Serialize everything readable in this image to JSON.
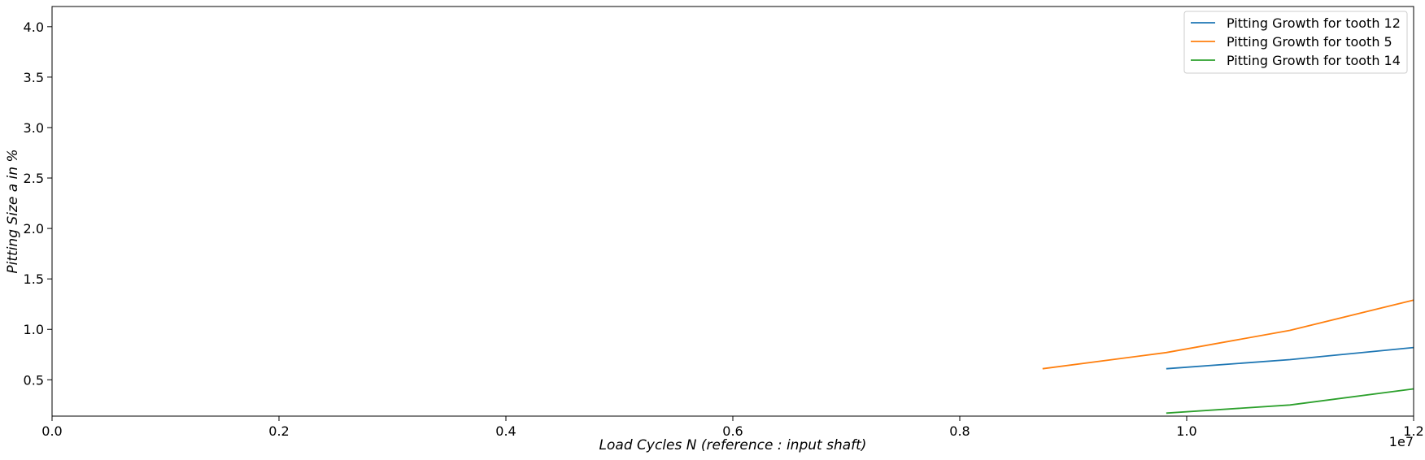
{
  "chart_data": {
    "type": "line",
    "xlabel": "Load Cycles N (reference :  input shaft)",
    "ylabel": "Pitting Size a in %",
    "x_offset_label": "1e7",
    "xlim": [
      0.0,
      1.2
    ],
    "ylim": [
      0.14,
      4.2
    ],
    "x_ticks": [
      "0.0",
      "0.2",
      "0.4",
      "0.6",
      "0.8",
      "1.0",
      "1.2"
    ],
    "y_ticks": [
      "0.5",
      "1.0",
      "1.5",
      "2.0",
      "2.5",
      "3.0",
      "3.5",
      "4.0"
    ],
    "legend_position": "top-right",
    "grid": false,
    "series": [
      {
        "name": "Pitting Growth for tooth 12",
        "color": "#1f77b4",
        "x": [
          0.982,
          1.091,
          1.2
        ],
        "y": [
          0.61,
          0.7,
          0.82
        ]
      },
      {
        "name": "Pitting Growth for tooth 5",
        "color": "#ff7f0e",
        "x": [
          0.873,
          0.982,
          1.091,
          1.2
        ],
        "y": [
          0.61,
          0.77,
          0.99,
          1.29
        ]
      },
      {
        "name": "Pitting Growth for tooth 14",
        "color": "#2ca02c",
        "x": [
          0.982,
          1.091,
          1.2
        ],
        "y": [
          0.17,
          0.25,
          0.41
        ]
      }
    ]
  }
}
